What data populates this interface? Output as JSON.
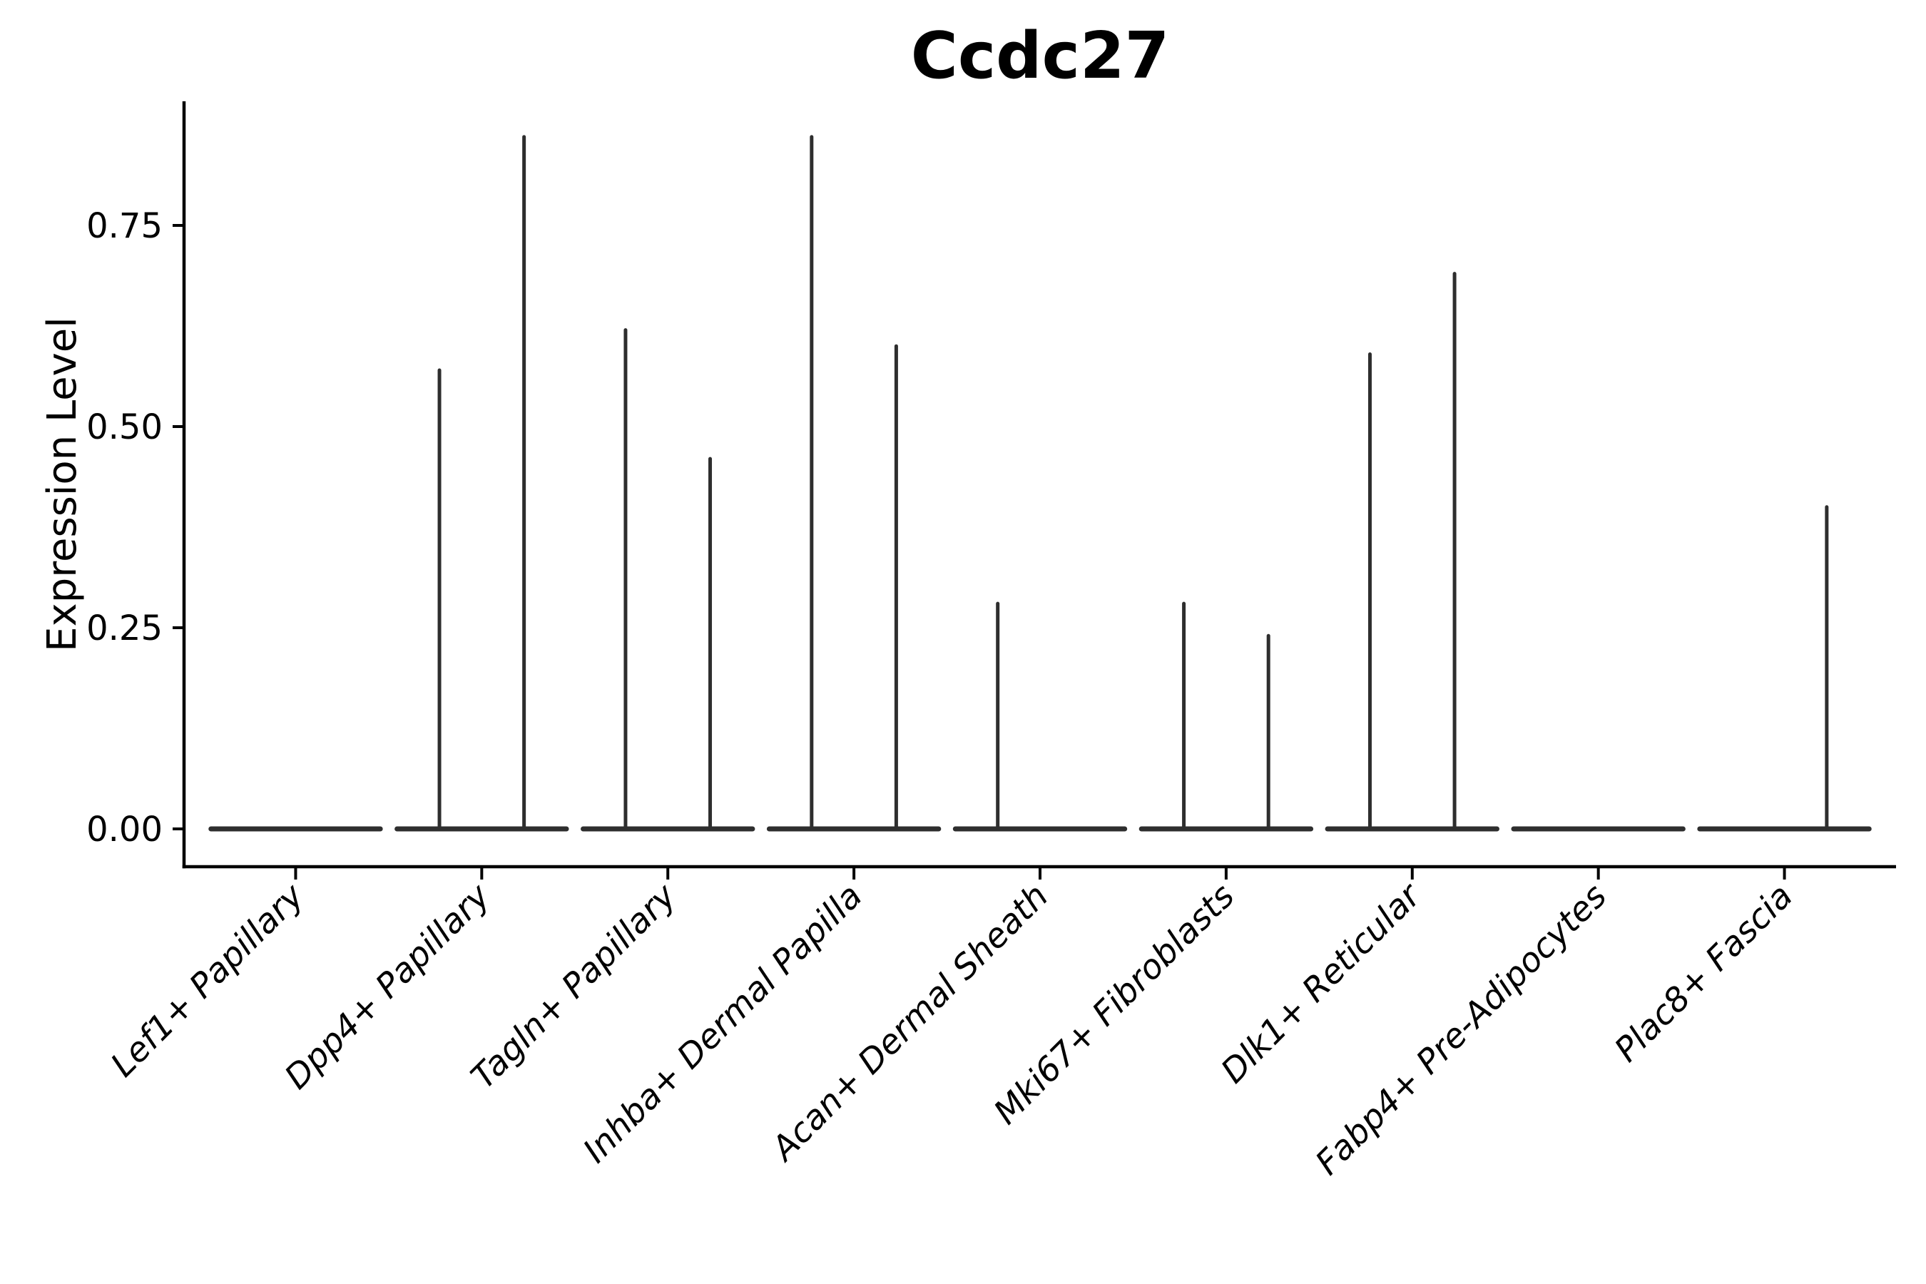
{
  "chart_data": {
    "type": "violin",
    "title": "Ccdc27",
    "ylabel": "Expression Level",
    "xlabel": "",
    "legend": "none",
    "grid": false,
    "violins_per_category": 2,
    "categories": [
      {
        "label": "Lef1+ Papillary",
        "violin_max": [
          0,
          0
        ]
      },
      {
        "label": "Dpp4+ Papillary",
        "violin_max": [
          0.57,
          0.86
        ]
      },
      {
        "label": "Tagln+ Papillary",
        "violin_max": [
          0.62,
          0.46
        ]
      },
      {
        "label": "Inhba+ Dermal Papilla",
        "violin_max": [
          0.86,
          0.6
        ]
      },
      {
        "label": "Acan+ Dermal Sheath",
        "violin_max": [
          0.28,
          0
        ]
      },
      {
        "label": "Mki67+ Fibroblasts",
        "violin_max": [
          0.28,
          0.24
        ]
      },
      {
        "label": "Dlk1+ Reticular",
        "violin_max": [
          0.59,
          0.69
        ]
      },
      {
        "label": "Fabp4+ Pre-Adipocytes",
        "violin_max": [
          0,
          0
        ]
      },
      {
        "label": "Plac8+ Fascia",
        "violin_max": [
          0,
          0.4
        ]
      }
    ],
    "yticks": [
      0,
      0.25,
      0.5,
      0.75
    ],
    "ytick_labels": [
      "0.00",
      "0.25",
      "0.50",
      "0.75"
    ],
    "ylim": [
      -0.047,
      0.905
    ],
    "colors": {
      "violin": "#2e2e2e",
      "axis": "#000000",
      "text": "#000000",
      "background": "#ffffff"
    }
  }
}
